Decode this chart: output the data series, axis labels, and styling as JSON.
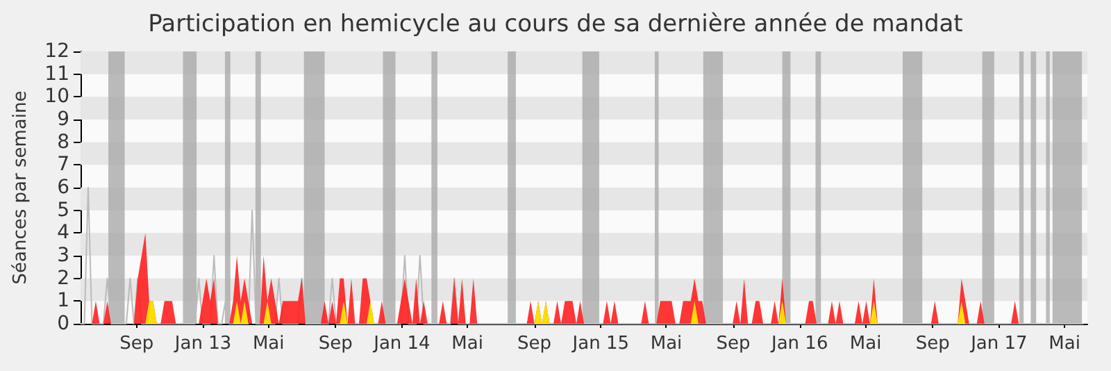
{
  "chart_data": {
    "type": "area",
    "title": "Participation en hemicycle au cours de sa dernière année de mandat",
    "ylabel": "Séances par semaine",
    "x": [
      "2012-05-21",
      "2012-05-28",
      "2012-06-04",
      "2012-06-11",
      "2012-06-18",
      "2012-06-25",
      "2012-07-02",
      "2012-07-09",
      "2012-07-16",
      "2012-07-23",
      "2012-07-30",
      "2012-08-06",
      "2012-08-13",
      "2012-08-20",
      "2012-08-27",
      "2012-09-03",
      "2012-09-10",
      "2012-09-17",
      "2012-09-24",
      "2012-10-01",
      "2012-10-08",
      "2012-10-15",
      "2012-10-22",
      "2012-10-29",
      "2012-11-05",
      "2012-11-12",
      "2012-11-19",
      "2012-11-26",
      "2012-12-03",
      "2012-12-10",
      "2012-12-17",
      "2012-12-24",
      "2012-12-31",
      "2013-01-07",
      "2013-01-14",
      "2013-01-21",
      "2013-01-28",
      "2013-02-04",
      "2013-02-11",
      "2013-02-18",
      "2013-02-25",
      "2013-03-04",
      "2013-03-11",
      "2013-03-18",
      "2013-03-25",
      "2013-04-01",
      "2013-04-08",
      "2013-04-15",
      "2013-04-22",
      "2013-04-29",
      "2013-05-06",
      "2013-05-13",
      "2013-05-20",
      "2013-05-27",
      "2013-06-03",
      "2013-06-10",
      "2013-06-17",
      "2013-06-24",
      "2013-07-01",
      "2013-07-08",
      "2013-07-15",
      "2013-07-22",
      "2013-07-29",
      "2013-08-05",
      "2013-08-12",
      "2013-08-19",
      "2013-08-26",
      "2013-09-02",
      "2013-09-09",
      "2013-09-16",
      "2013-09-23",
      "2013-09-30",
      "2013-10-07",
      "2013-10-14",
      "2013-10-21",
      "2013-10-28",
      "2013-11-04",
      "2013-11-11",
      "2013-11-18",
      "2013-11-25",
      "2013-12-02",
      "2013-12-09",
      "2013-12-16",
      "2013-12-23",
      "2013-12-30",
      "2014-01-06",
      "2014-01-13",
      "2014-01-20",
      "2014-01-27",
      "2014-02-03",
      "2014-02-10",
      "2014-02-17",
      "2014-02-24",
      "2014-03-03",
      "2014-03-10",
      "2014-03-17",
      "2014-03-24",
      "2014-03-31",
      "2014-04-07",
      "2014-04-14",
      "2014-04-21",
      "2014-04-28",
      "2014-05-05",
      "2014-05-12",
      "2014-05-19",
      "2014-05-26",
      "2014-06-02",
      "2014-06-09",
      "2014-06-16",
      "2014-06-23",
      "2014-06-30",
      "2014-07-07",
      "2014-07-14",
      "2014-07-21",
      "2014-07-28",
      "2014-08-04",
      "2014-08-11",
      "2014-08-18",
      "2014-08-25",
      "2014-09-01",
      "2014-09-08",
      "2014-09-15",
      "2014-09-22",
      "2014-09-29",
      "2014-10-06",
      "2014-10-13",
      "2014-10-20",
      "2014-10-27",
      "2014-11-03",
      "2014-11-10",
      "2014-11-17",
      "2014-11-24",
      "2014-12-01",
      "2014-12-08",
      "2014-12-15",
      "2014-12-22",
      "2014-12-29",
      "2015-01-05",
      "2015-01-12",
      "2015-01-19",
      "2015-01-26",
      "2015-02-02",
      "2015-02-09",
      "2015-02-16",
      "2015-02-23",
      "2015-03-02",
      "2015-03-09",
      "2015-03-16",
      "2015-03-23",
      "2015-03-30",
      "2015-04-06",
      "2015-04-13",
      "2015-04-20",
      "2015-04-27",
      "2015-05-04",
      "2015-05-11",
      "2015-05-18",
      "2015-05-25",
      "2015-06-01",
      "2015-06-08",
      "2015-06-15",
      "2015-06-22",
      "2015-06-29",
      "2015-07-06",
      "2015-07-13",
      "2015-07-20",
      "2015-07-27",
      "2015-08-03",
      "2015-08-10",
      "2015-08-17",
      "2015-08-24",
      "2015-08-31",
      "2015-09-07",
      "2015-09-14",
      "2015-09-21",
      "2015-09-28",
      "2015-10-05",
      "2015-10-12",
      "2015-10-19",
      "2015-10-26",
      "2015-11-02",
      "2015-11-09",
      "2015-11-16",
      "2015-11-23",
      "2015-11-30",
      "2015-12-07",
      "2015-12-14",
      "2015-12-21",
      "2015-12-28",
      "2016-01-04",
      "2016-01-11",
      "2016-01-18",
      "2016-01-25",
      "2016-02-01",
      "2016-02-08",
      "2016-02-15",
      "2016-02-22",
      "2016-02-29",
      "2016-03-07",
      "2016-03-14",
      "2016-03-21",
      "2016-03-28",
      "2016-04-04",
      "2016-04-11",
      "2016-04-18",
      "2016-04-25",
      "2016-05-02",
      "2016-05-09",
      "2016-05-16",
      "2016-05-23",
      "2016-05-30",
      "2016-06-06",
      "2016-06-13",
      "2016-06-20",
      "2016-06-27",
      "2016-07-04",
      "2016-07-11",
      "2016-07-18",
      "2016-07-25",
      "2016-08-01",
      "2016-08-08",
      "2016-08-15",
      "2016-08-22",
      "2016-08-29",
      "2016-09-05",
      "2016-09-12",
      "2016-09-19",
      "2016-09-26",
      "2016-10-03",
      "2016-10-10",
      "2016-10-17",
      "2016-10-24",
      "2016-10-31",
      "2016-11-07",
      "2016-11-14",
      "2016-11-21",
      "2016-11-28",
      "2016-12-05",
      "2016-12-12",
      "2016-12-19",
      "2016-12-26",
      "2017-01-02",
      "2017-01-09",
      "2017-01-16",
      "2017-01-23",
      "2017-01-30",
      "2017-02-06",
      "2017-02-13",
      "2017-02-20",
      "2017-02-27",
      "2017-03-06",
      "2017-03-13",
      "2017-03-20",
      "2017-03-27",
      "2017-04-03",
      "2017-04-10",
      "2017-04-17",
      "2017-04-24",
      "2017-05-01",
      "2017-05-08",
      "2017-05-15",
      "2017-05-22",
      "2017-05-29",
      "2017-06-05"
    ],
    "series": [
      {
        "type": "line",
        "color": "#bbbbbb",
        "values": [
          0,
          0,
          6,
          0,
          0,
          0,
          0,
          2,
          0,
          0,
          0,
          0,
          0,
          2,
          0,
          2,
          0,
          0,
          0,
          0,
          0,
          0,
          0,
          0,
          0,
          0,
          0,
          0,
          0,
          0,
          0,
          2,
          0,
          0,
          0,
          3,
          0,
          0,
          1,
          0,
          0,
          0,
          0,
          0,
          0,
          5,
          0,
          0,
          0,
          0,
          0,
          0,
          2,
          0,
          0,
          0,
          0,
          0,
          2,
          0,
          0,
          0,
          0,
          0,
          0,
          0,
          2,
          0,
          0,
          0,
          0,
          0,
          0,
          0,
          0,
          0,
          0,
          0,
          0,
          0,
          0,
          0,
          0,
          0,
          0,
          3,
          0,
          0,
          0,
          3,
          0,
          0,
          0,
          0,
          0,
          0,
          0,
          0,
          2,
          0,
          0,
          0,
          0,
          0,
          0,
          0,
          0,
          0,
          0,
          0,
          0,
          0,
          0,
          0,
          0,
          0,
          0,
          0,
          0,
          0,
          0,
          0,
          0,
          0,
          0,
          0,
          0,
          0,
          0,
          0,
          0,
          0,
          0,
          0,
          0,
          0,
          0,
          0,
          0,
          0,
          0,
          0,
          0,
          0,
          0,
          0,
          0,
          0,
          0,
          0,
          0,
          0,
          0,
          0,
          0,
          0,
          0,
          0,
          0,
          0,
          0,
          0,
          0,
          0,
          0,
          0,
          0,
          0,
          0,
          0,
          0,
          0,
          0,
          0,
          0,
          0,
          0,
          0,
          0,
          0,
          0,
          0,
          0,
          0,
          0,
          0,
          0,
          0,
          0,
          0,
          0,
          0,
          0,
          0,
          0,
          0,
          0,
          0,
          0,
          0,
          0,
          0,
          0,
          0,
          0,
          0,
          0,
          0,
          0,
          0,
          0,
          0,
          0,
          0,
          0,
          0,
          0,
          0,
          0,
          0,
          0,
          0,
          0,
          0,
          0,
          0,
          0,
          0,
          0,
          0,
          0,
          0,
          0,
          0,
          0,
          0,
          0,
          0,
          0,
          0,
          0,
          0,
          0,
          0,
          0,
          0,
          0,
          0,
          0,
          0,
          0,
          0,
          0,
          0,
          0,
          0,
          0,
          0,
          0,
          0,
          0,
          0,
          0,
          0
        ]
      },
      {
        "color": "#ff2020",
        "values": [
          0,
          0,
          0,
          0,
          1,
          0,
          0,
          1,
          0,
          0,
          0,
          0,
          0,
          0,
          0,
          2,
          3,
          4,
          1,
          1,
          0,
          0,
          1,
          1,
          1,
          0,
          0,
          0,
          0,
          0,
          0,
          0,
          1,
          2,
          1,
          2,
          0,
          0,
          0,
          0,
          1,
          3,
          1,
          2,
          1,
          0,
          0,
          0,
          3,
          1,
          2,
          1,
          0,
          1,
          1,
          1,
          1,
          1,
          2,
          0,
          0,
          0,
          0,
          0,
          1,
          0,
          1,
          0,
          2,
          2,
          0,
          2,
          0,
          0,
          2,
          2,
          1,
          0,
          0,
          1,
          0,
          0,
          0,
          0,
          1,
          2,
          1,
          0,
          2,
          0,
          1,
          0,
          0,
          0,
          0,
          1,
          0,
          0,
          2,
          0,
          2,
          0,
          0,
          2,
          0,
          0,
          0,
          0,
          0,
          0,
          0,
          0,
          0,
          0,
          0,
          0,
          0,
          0,
          1,
          0,
          1,
          0,
          1,
          0,
          0,
          1,
          0,
          1,
          1,
          1,
          0,
          1,
          0,
          0,
          0,
          0,
          0,
          0,
          1,
          0,
          1,
          0,
          0,
          0,
          0,
          0,
          0,
          0,
          1,
          0,
          0,
          0,
          1,
          1,
          1,
          1,
          0,
          0,
          1,
          1,
          1,
          2,
          1,
          1,
          0,
          0,
          0,
          0,
          0,
          0,
          0,
          0,
          1,
          0,
          2,
          0,
          0,
          1,
          1,
          0,
          0,
          0,
          1,
          0,
          2,
          0,
          0,
          0,
          0,
          0,
          0,
          1,
          1,
          0,
          0,
          0,
          0,
          1,
          0,
          1,
          0,
          0,
          0,
          0,
          1,
          0,
          1,
          0,
          2,
          0,
          0,
          0,
          0,
          0,
          0,
          0,
          0,
          0,
          0,
          0,
          0,
          0,
          0,
          0,
          1,
          0,
          0,
          0,
          0,
          0,
          0,
          2,
          1,
          0,
          0,
          0,
          1,
          0,
          0,
          0,
          0,
          0,
          0,
          0,
          0,
          1,
          0,
          0,
          0,
          0,
          0,
          0,
          0,
          0,
          0,
          0,
          0,
          0,
          0,
          0,
          0,
          0,
          0,
          0
        ]
      },
      {
        "color": "#ffee00",
        "values": [
          0,
          0,
          0,
          0,
          0,
          0,
          0,
          0,
          0,
          0,
          0,
          0,
          0,
          0,
          0,
          0,
          0,
          0,
          1,
          1,
          0,
          0,
          0,
          0,
          0,
          0,
          0,
          0,
          0,
          0,
          0,
          0,
          0,
          0,
          0,
          0,
          0,
          0,
          0,
          0,
          0,
          1,
          0,
          1,
          0,
          0,
          0,
          0,
          0,
          1,
          0,
          0,
          0,
          0,
          0,
          0,
          0,
          0,
          0,
          0,
          0,
          0,
          0,
          0,
          0,
          0,
          0,
          0,
          0,
          1,
          0,
          0,
          0,
          0,
          0,
          0,
          1,
          0,
          0,
          0,
          0,
          0,
          0,
          0,
          0,
          0,
          0,
          0,
          0,
          0,
          0,
          0,
          0,
          0,
          0,
          0,
          0,
          0,
          0,
          0,
          0,
          0,
          0,
          0,
          0,
          0,
          0,
          0,
          0,
          0,
          0,
          0,
          0,
          0,
          0,
          0,
          0,
          0,
          0,
          0,
          1,
          0,
          1,
          0,
          0,
          0,
          0,
          0,
          0,
          0,
          0,
          0,
          0,
          0,
          0,
          0,
          0,
          0,
          0,
          0,
          0,
          0,
          0,
          0,
          0,
          0,
          0,
          0,
          0,
          0,
          0,
          0,
          0,
          0,
          0,
          0,
          0,
          0,
          0,
          0,
          0,
          1,
          0,
          0,
          0,
          0,
          0,
          0,
          0,
          0,
          0,
          0,
          0,
          0,
          0,
          0,
          0,
          0,
          0,
          0,
          0,
          0,
          0,
          0,
          1,
          0,
          0,
          0,
          0,
          0,
          0,
          0,
          0,
          0,
          0,
          0,
          0,
          0,
          0,
          0,
          0,
          0,
          0,
          0,
          0,
          0,
          0,
          0,
          1,
          0,
          0,
          0,
          0,
          0,
          0,
          0,
          0,
          0,
          0,
          0,
          0,
          0,
          0,
          0,
          0,
          0,
          0,
          0,
          0,
          0,
          0,
          1,
          0,
          0,
          0,
          0,
          0,
          0,
          0,
          0,
          0,
          0,
          0,
          0,
          0,
          0,
          0,
          0,
          0,
          0,
          0,
          0,
          0,
          0,
          0,
          0,
          0,
          0,
          0,
          0,
          0,
          0,
          0,
          0
        ]
      }
    ],
    "xlim": [
      "2012-05-21",
      "2017-06-12"
    ],
    "xticks": [
      {
        "value": "2012-09-01",
        "label": "Sep"
      },
      {
        "value": "2013-01-01",
        "label": "Jan 13"
      },
      {
        "value": "2013-05-01",
        "label": "Mai"
      },
      {
        "value": "2013-09-01",
        "label": "Sep"
      },
      {
        "value": "2014-01-01",
        "label": "Jan 14"
      },
      {
        "value": "2014-05-01",
        "label": "Mai"
      },
      {
        "value": "2014-09-01",
        "label": "Sep"
      },
      {
        "value": "2015-01-01",
        "label": "Jan 15"
      },
      {
        "value": "2015-05-01",
        "label": "Mai"
      },
      {
        "value": "2015-09-01",
        "label": "Sep"
      },
      {
        "value": "2016-01-01",
        "label": "Jan 16"
      },
      {
        "value": "2016-05-01",
        "label": "Mai"
      },
      {
        "value": "2016-09-01",
        "label": "Sep"
      },
      {
        "value": "2017-01-01",
        "label": "Jan 17"
      },
      {
        "value": "2017-05-01",
        "label": "Mai"
      }
    ],
    "ylim": [
      0,
      12
    ],
    "yticks": [
      0,
      1,
      2,
      3,
      4,
      5,
      6,
      7,
      8,
      9,
      10,
      11,
      12
    ],
    "marker": "none",
    "bands": [
      {
        "axis": "y",
        "from": 1,
        "to": 2,
        "color": "#e6e6e6"
      },
      {
        "axis": "y",
        "from": 3,
        "to": 4,
        "color": "#e6e6e6"
      },
      {
        "axis": "y",
        "from": 5,
        "to": 6,
        "color": "#e6e6e6"
      },
      {
        "axis": "y",
        "from": 7,
        "to": 8,
        "color": "#e6e6e6"
      },
      {
        "axis": "y",
        "from": 9,
        "to": 10,
        "color": "#e6e6e6"
      },
      {
        "axis": "y",
        "from": 11,
        "to": 12,
        "color": "#e6e6e6"
      },
      {
        "axis": "x",
        "from": "2012-07-11",
        "to": "2012-08-10",
        "color": "#aaaaaa"
      },
      {
        "axis": "x",
        "from": "2012-11-25",
        "to": "2012-12-20",
        "color": "#aaaaaa"
      },
      {
        "axis": "x",
        "from": "2013-02-10",
        "to": "2013-02-20",
        "color": "#aaaaaa"
      },
      {
        "axis": "x",
        "from": "2013-04-07",
        "to": "2013-04-17",
        "color": "#aaaaaa"
      },
      {
        "axis": "x",
        "from": "2013-07-05",
        "to": "2013-08-12",
        "color": "#aaaaaa"
      },
      {
        "axis": "x",
        "from": "2013-11-27",
        "to": "2013-12-20",
        "color": "#aaaaaa"
      },
      {
        "axis": "x",
        "from": "2014-02-24",
        "to": "2014-03-07",
        "color": "#aaaaaa"
      },
      {
        "axis": "x",
        "from": "2014-07-14",
        "to": "2014-07-29",
        "color": "#aaaaaa"
      },
      {
        "axis": "x",
        "from": "2014-11-28",
        "to": "2014-12-29",
        "color": "#aaaaaa"
      },
      {
        "axis": "x",
        "from": "2015-04-10",
        "to": "2015-04-17",
        "color": "#aaaaaa"
      },
      {
        "axis": "x",
        "from": "2015-07-08",
        "to": "2015-08-13",
        "color": "#aaaaaa"
      },
      {
        "axis": "x",
        "from": "2015-11-30",
        "to": "2015-12-15",
        "color": "#aaaaaa"
      },
      {
        "axis": "x",
        "from": "2016-01-30",
        "to": "2016-02-09",
        "color": "#aaaaaa"
      },
      {
        "axis": "x",
        "from": "2016-07-08",
        "to": "2016-08-13",
        "color": "#aaaaaa"
      },
      {
        "axis": "x",
        "from": "2016-12-01",
        "to": "2016-12-23",
        "color": "#aaaaaa"
      },
      {
        "axis": "x",
        "from": "2017-02-07",
        "to": "2017-02-15",
        "color": "#aaaaaa"
      },
      {
        "axis": "x",
        "from": "2017-02-28",
        "to": "2017-03-10",
        "color": "#aaaaaa"
      },
      {
        "axis": "x",
        "from": "2017-03-28",
        "to": "2017-04-04",
        "color": "#aaaaaa"
      },
      {
        "axis": "x",
        "from": "2017-04-09",
        "to": "2017-06-02",
        "color": "#aaaaaa"
      }
    ]
  }
}
